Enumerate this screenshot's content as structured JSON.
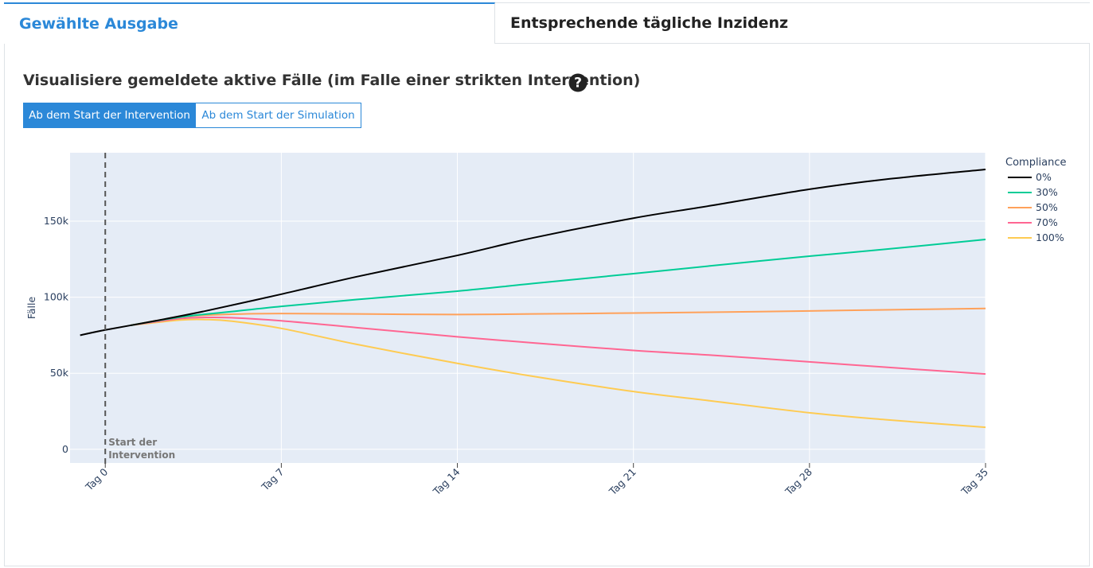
{
  "tabs": [
    {
      "label": "Gewählte Ausgabe",
      "active": true
    },
    {
      "label": "Entsprechende tägliche Inzidenz",
      "active": false
    }
  ],
  "heading": "Visualisiere gemeldete aktive Fälle (im Falle einer strikten Intervention)",
  "help_icon": "question-circle-icon",
  "buttons": [
    {
      "label": "Ab dem Start der Intervention",
      "active": true
    },
    {
      "label": "Ab dem Start der Simulation",
      "active": false
    }
  ],
  "colors": {
    "accent": "#2b88d8",
    "plot_bg": "#e5ecf6",
    "grid": "#ffffff"
  },
  "chart_data": {
    "type": "line",
    "title": "",
    "xlabel": "",
    "ylabel": "Fälle",
    "xlim": [
      -1.4,
      35
    ],
    "ylim": [
      -9000,
      195000
    ],
    "x_ticks": [
      {
        "value": 0,
        "label": "Tag 0"
      },
      {
        "value": 7,
        "label": "Tag 7"
      },
      {
        "value": 14,
        "label": "Tag 14"
      },
      {
        "value": 21,
        "label": "Tag 21"
      },
      {
        "value": 28,
        "label": "Tag 28"
      },
      {
        "value": 35,
        "label": "Tag 35"
      }
    ],
    "y_ticks": [
      {
        "value": 0,
        "label": "0"
      },
      {
        "value": 50000,
        "label": "50k"
      },
      {
        "value": 100000,
        "label": "100k"
      },
      {
        "value": 150000,
        "label": "150k"
      }
    ],
    "grid": true,
    "legend": {
      "title": "Compliance",
      "position": "top-right"
    },
    "series": [
      {
        "name": "0%",
        "color": "#000000",
        "points": [
          [
            -1,
            75000
          ],
          [
            0,
            78500
          ],
          [
            2,
            84500
          ],
          [
            4,
            91000
          ],
          [
            7,
            102000
          ],
          [
            10,
            113500
          ],
          [
            14,
            127500
          ],
          [
            17,
            139000
          ],
          [
            21,
            152000
          ],
          [
            24,
            160000
          ],
          [
            28,
            171000
          ],
          [
            31,
            177500
          ],
          [
            35,
            184000
          ]
        ]
      },
      {
        "name": "30%",
        "color": "#00cc96",
        "points": [
          [
            1,
            81500
          ],
          [
            3,
            87000
          ],
          [
            5,
            90500
          ],
          [
            7,
            94000
          ],
          [
            10,
            98500
          ],
          [
            14,
            104000
          ],
          [
            17,
            109000
          ],
          [
            21,
            115500
          ],
          [
            24,
            120500
          ],
          [
            28,
            127000
          ],
          [
            31,
            131500
          ],
          [
            35,
            138000
          ]
        ]
      },
      {
        "name": "50%",
        "color": "#ffa15a",
        "points": [
          [
            1,
            81500
          ],
          [
            3,
            87000
          ],
          [
            5,
            88800
          ],
          [
            7,
            89300
          ],
          [
            10,
            89000
          ],
          [
            14,
            88600
          ],
          [
            17,
            89000
          ],
          [
            21,
            89600
          ],
          [
            24,
            90100
          ],
          [
            28,
            91000
          ],
          [
            31,
            91700
          ],
          [
            35,
            92600
          ]
        ]
      },
      {
        "name": "70%",
        "color": "#ff6692",
        "points": [
          [
            1,
            81500
          ],
          [
            3,
            86000
          ],
          [
            4,
            86700
          ],
          [
            5,
            86500
          ],
          [
            7,
            84500
          ],
          [
            10,
            80000
          ],
          [
            14,
            74000
          ],
          [
            17,
            70000
          ],
          [
            21,
            65000
          ],
          [
            24,
            62000
          ],
          [
            28,
            57500
          ],
          [
            31,
            54000
          ],
          [
            35,
            49500
          ]
        ]
      },
      {
        "name": "100%",
        "color": "#fecb52",
        "points": [
          [
            1,
            81500
          ],
          [
            3,
            85000
          ],
          [
            4,
            85300
          ],
          [
            5,
            84300
          ],
          [
            7,
            79500
          ],
          [
            10,
            69000
          ],
          [
            14,
            56500
          ],
          [
            17,
            48000
          ],
          [
            21,
            38000
          ],
          [
            24,
            32000
          ],
          [
            28,
            24000
          ],
          [
            31,
            19500
          ],
          [
            35,
            14500
          ]
        ]
      }
    ],
    "annotations": [
      {
        "x": 0,
        "text_line1": "Start der",
        "text_line2": "Intervention",
        "style": "dashed-vertical-line"
      }
    ]
  }
}
